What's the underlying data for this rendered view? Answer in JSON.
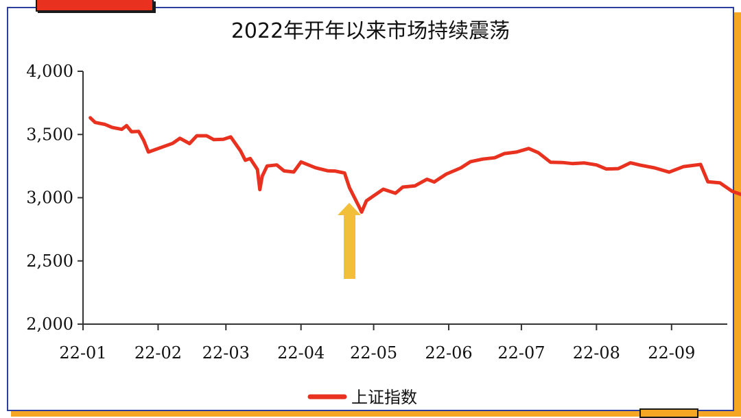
{
  "chart_data": {
    "type": "line",
    "title": "2022年开年以来市场持续震荡",
    "ylim": [
      2000,
      4000
    ],
    "y_ticks": [
      "2,000",
      "2,500",
      "3,000",
      "3,500",
      "4,000"
    ],
    "y_tick_values": [
      2000,
      2500,
      3000,
      3500,
      4000
    ],
    "x_ticks": [
      "22-01",
      "22-02",
      "22-03",
      "22-04",
      "22-05",
      "22-06",
      "22-07",
      "22-08",
      "22-09"
    ],
    "grid": false,
    "legend_position": "bottom",
    "series": [
      {
        "name": "上证指数",
        "color": "#e8321f",
        "x": [
          "2022-01-04",
          "2022-01-06",
          "2022-01-10",
          "2022-01-13",
          "2022-01-17",
          "2022-01-19",
          "2022-01-21",
          "2022-01-24",
          "2022-01-26",
          "2022-01-28",
          "2022-02-07",
          "2022-02-10",
          "2022-02-14",
          "2022-02-17",
          "2022-02-21",
          "2022-02-24",
          "2022-02-28",
          "2022-03-03",
          "2022-03-07",
          "2022-03-09",
          "2022-03-11",
          "2022-03-14",
          "2022-03-15",
          "2022-03-16",
          "2022-03-18",
          "2022-03-22",
          "2022-03-25",
          "2022-03-29",
          "2022-04-01",
          "2022-04-07",
          "2022-04-12",
          "2022-04-15",
          "2022-04-19",
          "2022-04-21",
          "2022-04-25",
          "2022-04-26",
          "2022-04-28",
          "2022-05-05",
          "2022-05-10",
          "2022-05-13",
          "2022-05-18",
          "2022-05-23",
          "2022-05-26",
          "2022-05-31",
          "2022-06-06",
          "2022-06-10",
          "2022-06-15",
          "2022-06-20",
          "2022-06-24",
          "2022-06-29",
          "2022-07-04",
          "2022-07-08",
          "2022-07-13",
          "2022-07-18",
          "2022-07-22",
          "2022-07-27",
          "2022-08-01",
          "2022-08-05",
          "2022-08-10",
          "2022-08-15",
          "2022-08-19",
          "2022-08-25",
          "2022-08-31",
          "2022-09-06",
          "2022-09-13",
          "2022-09-16",
          "2022-09-21",
          "2022-09-26",
          "2022-09-30"
        ],
        "values": [
          3632,
          3595,
          3580,
          3556,
          3541,
          3570,
          3522,
          3524,
          3455,
          3361,
          3430,
          3470,
          3428,
          3490,
          3490,
          3459,
          3462,
          3481,
          3372,
          3296,
          3310,
          3223,
          3064,
          3170,
          3251,
          3259,
          3212,
          3203,
          3283,
          3237,
          3213,
          3211,
          3195,
          3079,
          2928,
          2886,
          2975,
          3067,
          3035,
          3084,
          3093,
          3146,
          3124,
          3187,
          3236,
          3285,
          3305,
          3316,
          3349,
          3361,
          3389,
          3356,
          3281,
          3278,
          3270,
          3275,
          3259,
          3227,
          3230,
          3276,
          3258,
          3236,
          3202,
          3246,
          3263,
          3126,
          3117,
          3051,
          3024
        ]
      }
    ]
  }
}
